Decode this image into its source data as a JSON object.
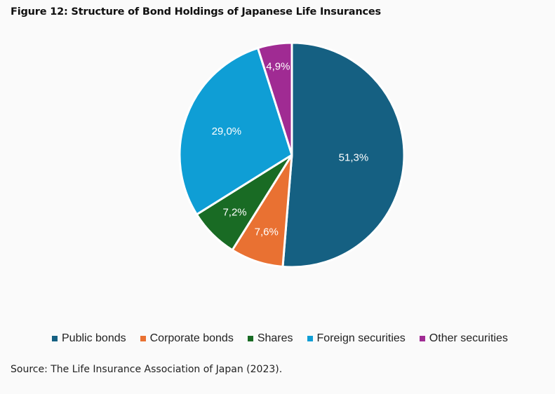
{
  "title": "Figure 12: Structure of Bond Holdings of Japanese Life Insurances",
  "source": "Source: The Life Insurance Association of Japan (2023).",
  "chart_data": {
    "type": "pie",
    "title": "Figure 12: Structure of Bond Holdings of Japanese Life Insurances",
    "categories": [
      "Public bonds",
      "Corporate bonds",
      "Shares",
      "Foreign securities",
      "Other securities"
    ],
    "values": [
      51.3,
      7.6,
      7.2,
      29.0,
      4.9
    ],
    "labels": [
      "51,3%",
      "7,6%",
      "7,2%",
      "29,0%",
      "4,9%"
    ],
    "colors": [
      "#156082",
      "#E97132",
      "#196B24",
      "#0F9ED5",
      "#A02B93"
    ],
    "start_angle": "12 o'clock",
    "direction": "clockwise",
    "legend_position": "bottom"
  },
  "legend": [
    {
      "label": "Public bonds",
      "color": "#156082"
    },
    {
      "label": "Corporate bonds",
      "color": "#E97132"
    },
    {
      "label": "Shares",
      "color": "#196B24"
    },
    {
      "label": "Foreign securities",
      "color": "#0F9ED5"
    },
    {
      "label": "Other securities",
      "color": "#A02B93"
    }
  ]
}
